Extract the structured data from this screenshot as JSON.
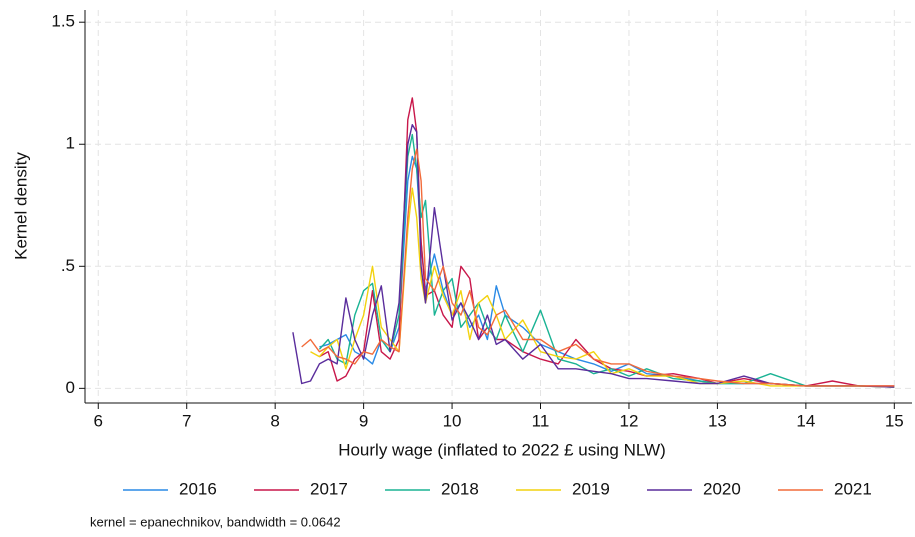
{
  "chart_data": {
    "type": "line",
    "xlabel": "Hourly wage (inflated to 2022 £ using NLW)",
    "ylabel": "Kernel density",
    "note": "kernel = epanechnikov, bandwidth = 0.0642",
    "x": [
      8.2,
      8.3,
      8.4,
      8.5,
      8.6,
      8.7,
      8.8,
      8.9,
      9.0,
      9.1,
      9.2,
      9.3,
      9.4,
      9.5,
      9.55,
      9.6,
      9.65,
      9.7,
      9.8,
      9.9,
      10.0,
      10.1,
      10.2,
      10.3,
      10.4,
      10.5,
      10.6,
      10.8,
      11.0,
      11.2,
      11.4,
      11.6,
      11.8,
      12.0,
      12.2,
      12.5,
      12.8,
      13.0,
      13.3,
      13.6,
      14.0,
      14.3,
      14.6,
      15.0
    ],
    "series": [
      {
        "name": "2016",
        "color": "#2a8ae6",
        "values": [
          null,
          null,
          null,
          0.17,
          0.18,
          0.2,
          0.22,
          0.15,
          0.13,
          0.1,
          0.2,
          0.15,
          0.25,
          0.85,
          0.95,
          0.9,
          0.6,
          0.4,
          0.55,
          0.4,
          0.3,
          0.35,
          0.25,
          0.3,
          0.2,
          0.42,
          0.3,
          0.25,
          0.18,
          0.15,
          0.12,
          0.1,
          0.07,
          0.1,
          0.06,
          0.05,
          0.03,
          0.02,
          0.02,
          0.02,
          0.01,
          0.01,
          0.01,
          0.005
        ]
      },
      {
        "name": "2017",
        "color": "#c8174a",
        "values": [
          null,
          null,
          null,
          0.13,
          0.15,
          0.03,
          0.05,
          0.12,
          0.15,
          0.4,
          0.15,
          0.12,
          0.2,
          1.1,
          1.19,
          1.05,
          0.6,
          0.38,
          0.4,
          0.3,
          0.25,
          0.5,
          0.45,
          0.2,
          0.25,
          0.2,
          0.2,
          0.15,
          0.12,
          0.1,
          0.2,
          0.12,
          0.08,
          0.07,
          0.05,
          0.06,
          0.04,
          0.02,
          0.04,
          0.02,
          0.01,
          0.03,
          0.01,
          0.01
        ]
      },
      {
        "name": "2018",
        "color": "#1ab394",
        "values": [
          null,
          null,
          null,
          0.16,
          0.2,
          0.12,
          0.1,
          0.3,
          0.4,
          0.43,
          0.2,
          0.15,
          0.3,
          0.95,
          1.04,
          0.9,
          0.7,
          0.77,
          0.3,
          0.4,
          0.45,
          0.25,
          0.3,
          0.35,
          0.25,
          0.2,
          0.3,
          0.15,
          0.32,
          0.12,
          0.1,
          0.06,
          0.08,
          0.05,
          0.08,
          0.04,
          0.03,
          0.02,
          0.02,
          0.06,
          0.01,
          0.01,
          0.01,
          0.005
        ]
      },
      {
        "name": "2019",
        "color": "#f2d20f",
        "values": [
          null,
          null,
          0.15,
          0.13,
          0.17,
          0.2,
          0.08,
          0.2,
          0.3,
          0.5,
          0.25,
          0.2,
          0.15,
          0.65,
          0.82,
          0.7,
          0.45,
          0.35,
          0.5,
          0.38,
          0.3,
          0.4,
          0.2,
          0.35,
          0.38,
          0.3,
          0.2,
          0.28,
          0.15,
          0.13,
          0.12,
          0.15,
          0.06,
          0.08,
          0.05,
          0.05,
          0.02,
          0.02,
          0.03,
          0.01,
          0.01,
          0.01,
          0.01,
          0.005
        ]
      },
      {
        "name": "2020",
        "color": "#5a2d9c",
        "values": [
          0.23,
          0.02,
          0.03,
          0.1,
          0.12,
          0.1,
          0.37,
          0.2,
          0.12,
          0.3,
          0.42,
          0.15,
          0.35,
          1.0,
          1.08,
          1.05,
          0.5,
          0.35,
          0.74,
          0.5,
          0.28,
          0.35,
          0.28,
          0.2,
          0.3,
          0.18,
          0.2,
          0.12,
          0.18,
          0.08,
          0.08,
          0.07,
          0.06,
          0.04,
          0.04,
          0.03,
          0.02,
          0.02,
          0.05,
          0.02,
          0.01,
          0.01,
          0.01,
          0.005
        ]
      },
      {
        "name": "2021",
        "color": "#f26b3a",
        "values": [
          null,
          0.17,
          0.2,
          0.15,
          0.17,
          0.13,
          0.12,
          0.1,
          0.15,
          0.14,
          0.2,
          0.17,
          0.15,
          0.7,
          0.9,
          0.98,
          0.85,
          0.45,
          0.4,
          0.5,
          0.35,
          0.3,
          0.4,
          0.25,
          0.22,
          0.3,
          0.32,
          0.2,
          0.2,
          0.15,
          0.18,
          0.12,
          0.1,
          0.1,
          0.07,
          0.05,
          0.04,
          0.03,
          0.02,
          0.02,
          0.01,
          0.01,
          0.01,
          0.01
        ]
      }
    ],
    "xlim": [
      5.85,
      15.2
    ],
    "ylim": [
      -0.06,
      1.55
    ],
    "xticks": [
      6,
      7,
      8,
      9,
      10,
      11,
      12,
      13,
      14,
      15
    ],
    "yticks": [
      0,
      {
        "value": 0.5,
        "label": ".5"
      },
      1,
      1.5
    ],
    "grid": true,
    "legend": "bottom"
  }
}
